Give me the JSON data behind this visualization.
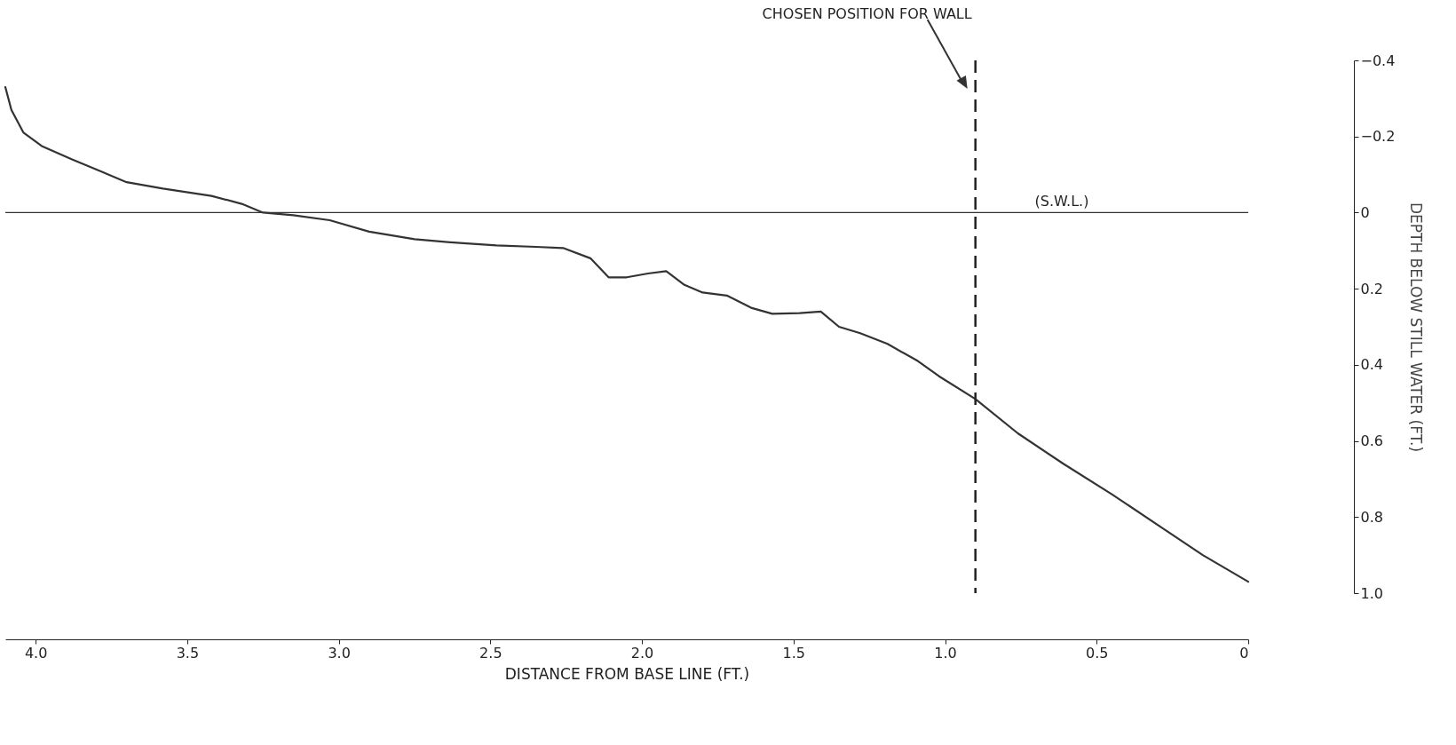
{
  "chart_data": {
    "type": "line",
    "xlabel": "DISTANCE FROM BASE LINE (FT.)",
    "ylabel": "DEPTH BELOW STILL WATER (FT.)",
    "x": [
      4.1,
      4.08,
      4.04,
      3.98,
      3.88,
      3.79,
      3.7,
      3.58,
      3.42,
      3.32,
      3.25,
      3.15,
      3.03,
      2.9,
      2.75,
      2.6,
      2.48,
      2.35,
      2.26,
      2.17,
      2.11,
      2.05,
      1.98,
      1.92,
      1.86,
      1.8,
      1.72,
      1.64,
      1.57,
      1.48,
      1.41,
      1.35,
      1.28,
      1.19,
      1.09,
      1.02,
      0.9,
      0.76,
      0.61,
      0.45,
      0.3,
      0.15,
      0.0
    ],
    "series": [
      {
        "color": "#333333",
        "values": [
          -0.33,
          -0.27,
          -0.21,
          -0.175,
          -0.14,
          -0.11,
          -0.08,
          -0.063,
          -0.044,
          -0.023,
          0,
          0.007,
          0.02,
          0.05,
          0.07,
          0.08,
          0.086,
          0.09,
          0.093,
          0.12,
          0.17,
          0.17,
          0.16,
          0.154,
          0.19,
          0.21,
          0.218,
          0.25,
          0.266,
          0.264,
          0.26,
          0.3,
          0.317,
          0.345,
          0.39,
          0.43,
          0.49,
          0.58,
          0.66,
          0.74,
          0.82,
          0.9,
          0.97
        ]
      }
    ],
    "xlim": [
      4.1,
      0
    ],
    "xticks": [
      {
        "value": 4.0,
        "label": "4.0"
      },
      3.5,
      {
        "value": 3.0,
        "label": "3.0"
      },
      2.5,
      {
        "value": 2.0,
        "label": "2.0"
      },
      1.5,
      {
        "value": 1.0,
        "label": "1.0"
      },
      0.5,
      0
    ],
    "ylim": [
      1.0,
      -0.4
    ],
    "yticks": [
      -0.4,
      -0.2,
      0,
      0.2,
      0.4,
      0.6,
      0.8,
      {
        "value": 1.0,
        "label": "1.0"
      }
    ],
    "ref_lines": [
      {
        "axis": "y",
        "value": 0,
        "label": "(S.W.L.)",
        "color": "#333333",
        "line_style": "solid"
      },
      {
        "axis": "x",
        "value": 0.9,
        "label": "CHOSEN POSITION FOR WALL",
        "color": "#222222",
        "line_style": "dashed"
      }
    ],
    "grid": false
  }
}
